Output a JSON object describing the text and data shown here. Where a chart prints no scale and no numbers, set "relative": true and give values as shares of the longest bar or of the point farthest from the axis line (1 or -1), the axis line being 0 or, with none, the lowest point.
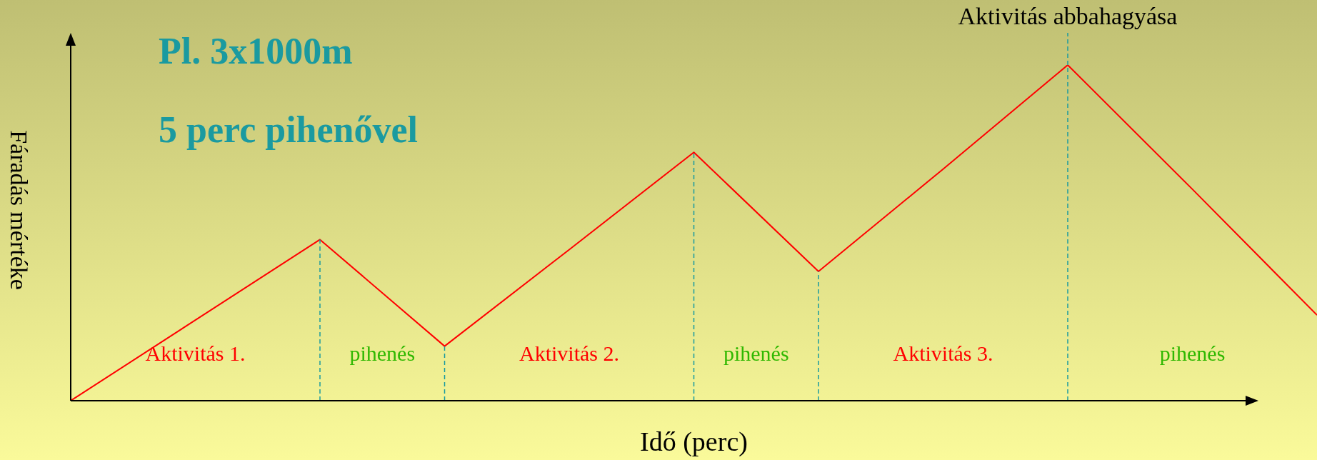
{
  "chart_data": {
    "type": "line",
    "relative": true,
    "title": "Pl. 3x1000m",
    "subtitle": "5 perc pihenővel",
    "xlabel": "Idő (perc)",
    "ylabel": "Fáradás mértéke",
    "categories": [
      null,
      null,
      null,
      null,
      null,
      null,
      null,
      null,
      null,
      null,
      null
    ],
    "series": [
      {
        "color": "#ff0000",
        "values": [
          0,
          0.24,
          0.48,
          0.1625,
          0.45,
          0.74,
          0.385,
          0.69,
          1,
          0.63,
          0.255
        ]
      }
    ],
    "annotations": [
      "Aktivitás abbahagyása",
      "Aktivitás 1.",
      "pihenés",
      "Aktivitás 2.",
      "pihenés",
      "Aktivitás 3.",
      "pihenés"
    ],
    "marker": "none",
    "line_style": "solid"
  }
}
